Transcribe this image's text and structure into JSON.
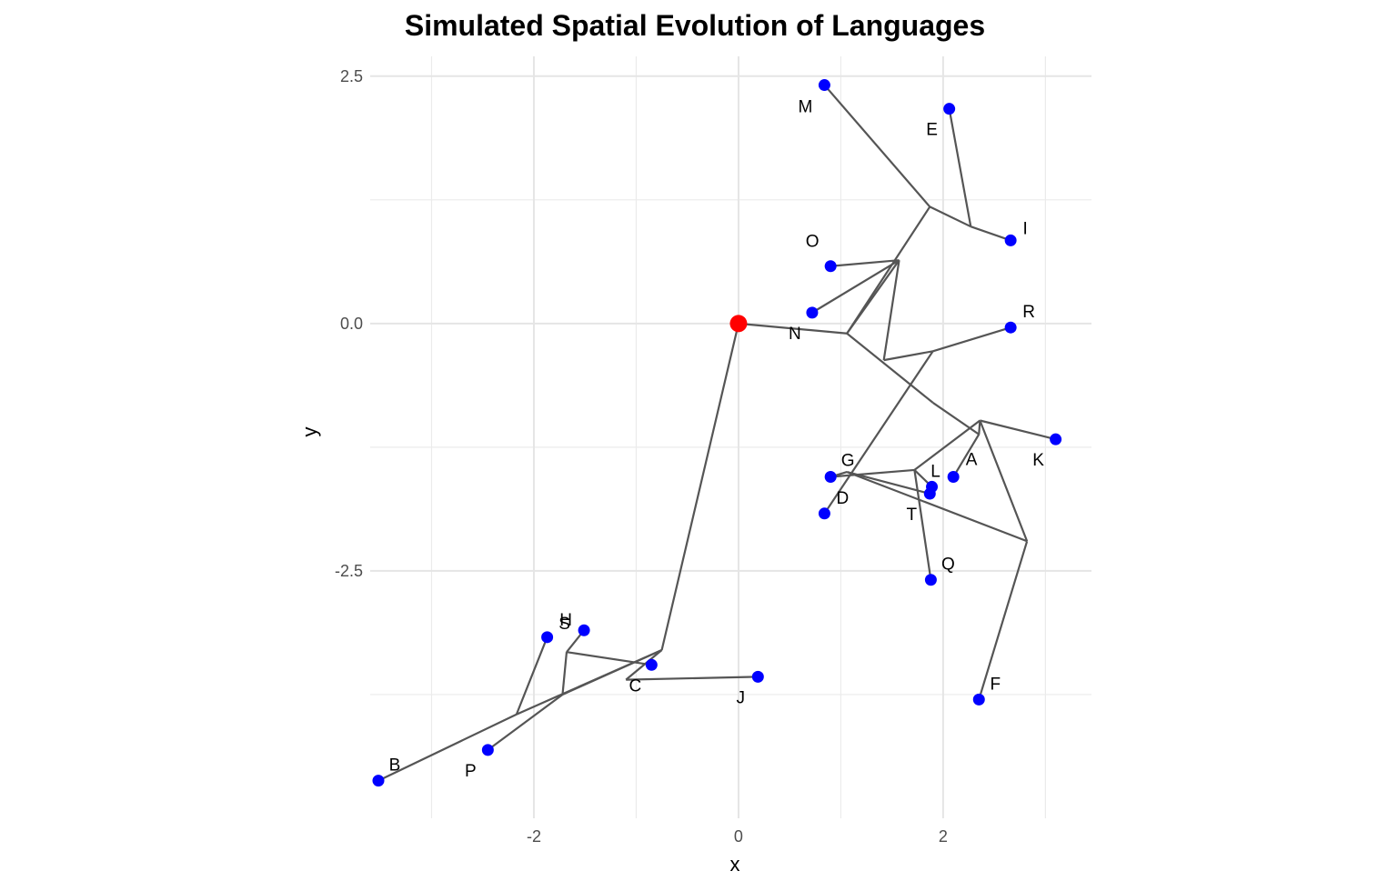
{
  "chart_data": {
    "type": "scatter",
    "title": "Simulated Spatial Evolution of Languages",
    "xlabel": "x",
    "ylabel": "y",
    "xlim": [
      -3.6,
      3.45
    ],
    "ylim": [
      -5.0,
      2.7
    ],
    "x_ticks": [
      -2,
      0,
      2
    ],
    "x_tick_labels": [
      "-2",
      "0",
      "2"
    ],
    "y_ticks": [
      2.5,
      0.0,
      -2.5
    ],
    "y_tick_labels": [
      "2.5",
      "0.0",
      "-2.5"
    ],
    "grid": true,
    "colors": {
      "root": "#ff0000",
      "language": "#0000ff",
      "edge": "#555555"
    },
    "root": {
      "x": 0.0,
      "y": 0.0
    },
    "languages": [
      {
        "name": "A",
        "x": 2.1,
        "y": -1.55
      },
      {
        "name": "B",
        "x": -3.52,
        "y": -4.62
      },
      {
        "name": "C",
        "x": -0.85,
        "y": -3.45
      },
      {
        "name": "D",
        "x": 0.84,
        "y": -1.92
      },
      {
        "name": "E",
        "x": 2.06,
        "y": 2.17
      },
      {
        "name": "F",
        "x": 2.35,
        "y": -3.8
      },
      {
        "name": "G",
        "x": 0.9,
        "y": -1.55
      },
      {
        "name": "H",
        "x": -1.51,
        "y": -3.1
      },
      {
        "name": "I",
        "x": 2.66,
        "y": 0.84
      },
      {
        "name": "J",
        "x": 0.19,
        "y": -3.57
      },
      {
        "name": "K",
        "x": 3.1,
        "y": -1.17
      },
      {
        "name": "L",
        "x": 1.89,
        "y": -1.65
      },
      {
        "name": "M",
        "x": 0.84,
        "y": 2.41
      },
      {
        "name": "N",
        "x": 0.72,
        "y": 0.11
      },
      {
        "name": "O",
        "x": 0.9,
        "y": 0.58
      },
      {
        "name": "P",
        "x": -2.45,
        "y": -4.31
      },
      {
        "name": "Q",
        "x": 1.88,
        "y": -2.59
      },
      {
        "name": "R",
        "x": 2.66,
        "y": -0.04
      },
      {
        "name": "S",
        "x": -1.87,
        "y": -3.17
      },
      {
        "name": "T",
        "x": 1.87,
        "y": -1.72
      }
    ],
    "segments": [
      [
        0.0,
        0.0,
        1.06,
        -0.1
      ],
      [
        1.06,
        -0.1,
        1.57,
        0.64
      ],
      [
        1.57,
        0.64,
        0.9,
        0.58
      ],
      [
        1.57,
        0.64,
        0.72,
        0.11
      ],
      [
        1.06,
        -0.1,
        1.87,
        1.18
      ],
      [
        1.87,
        1.18,
        0.84,
        2.41
      ],
      [
        1.87,
        1.18,
        2.27,
        0.98
      ],
      [
        2.27,
        0.98,
        2.06,
        2.17
      ],
      [
        2.27,
        0.98,
        2.66,
        0.84
      ],
      [
        1.06,
        -0.1,
        1.9,
        -0.8
      ],
      [
        1.9,
        -0.8,
        2.35,
        -1.12
      ],
      [
        2.35,
        -1.12,
        2.1,
        -1.55
      ],
      [
        2.35,
        -1.12,
        2.36,
        -0.98
      ],
      [
        2.36,
        -0.98,
        3.1,
        -1.17
      ],
      [
        2.36,
        -0.98,
        2.82,
        -2.2
      ],
      [
        2.82,
        -2.2,
        2.35,
        -3.8
      ],
      [
        2.82,
        -2.2,
        1.06,
        -1.5
      ],
      [
        1.06,
        -1.5,
        1.87,
        -1.72
      ],
      [
        1.06,
        -1.5,
        0.9,
        -1.55
      ],
      [
        1.42,
        -0.37,
        1.57,
        0.64
      ],
      [
        1.42,
        -0.37,
        1.9,
        -0.28
      ],
      [
        1.9,
        -0.28,
        2.66,
        -0.04
      ],
      [
        1.9,
        -0.28,
        0.84,
        -1.92
      ],
      [
        0.9,
        -1.55,
        1.72,
        -1.48
      ],
      [
        1.72,
        -1.48,
        1.88,
        -2.59
      ],
      [
        1.72,
        -1.48,
        2.36,
        -0.98
      ],
      [
        1.72,
        -1.48,
        1.89,
        -1.65
      ],
      [
        0.0,
        0.0,
        -0.75,
        -3.3
      ],
      [
        -0.75,
        -3.3,
        -1.72,
        -3.75
      ],
      [
        -1.72,
        -3.75,
        -1.68,
        -3.32
      ],
      [
        -1.68,
        -3.32,
        -1.51,
        -3.1
      ],
      [
        -1.68,
        -3.32,
        -0.85,
        -3.45
      ],
      [
        -1.72,
        -3.75,
        -2.45,
        -4.31
      ],
      [
        -0.75,
        -3.3,
        -2.17,
        -3.95
      ],
      [
        -2.17,
        -3.95,
        -1.87,
        -3.17
      ],
      [
        -2.17,
        -3.95,
        -3.52,
        -4.62
      ],
      [
        -0.75,
        -3.3,
        -1.1,
        -3.6
      ],
      [
        -1.1,
        -3.6,
        0.19,
        -3.57
      ]
    ]
  }
}
